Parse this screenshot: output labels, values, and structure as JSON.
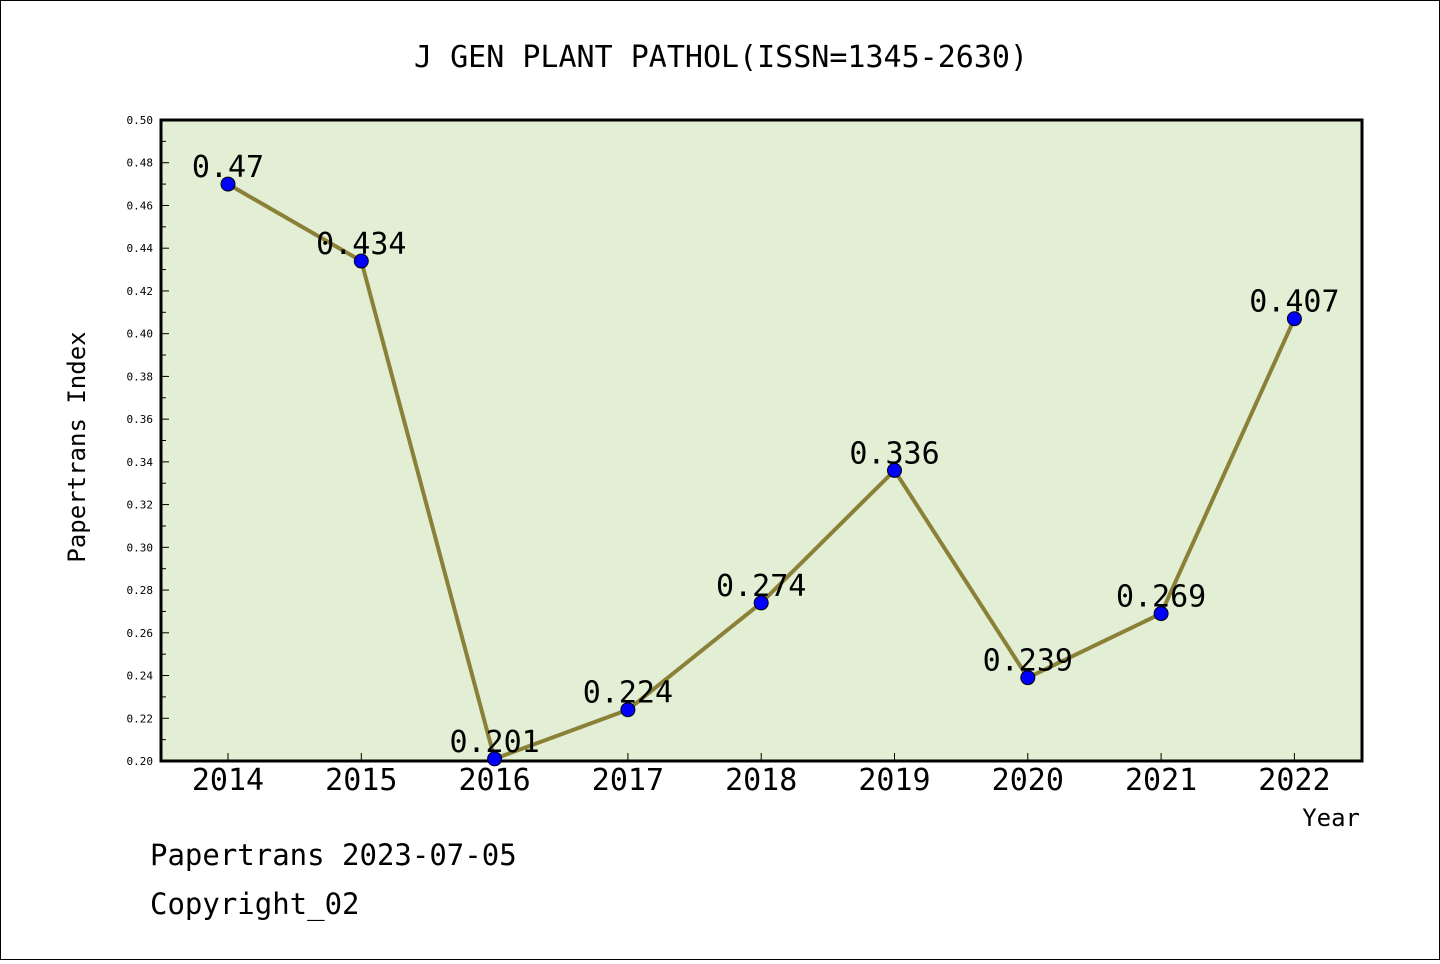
{
  "chart_data": {
    "type": "line",
    "title": "J GEN PLANT PATHOL(ISSN=1345-2630)",
    "xlabel": "Year",
    "ylabel": "Papertrans Index",
    "categories": [
      "2014",
      "2015",
      "2016",
      "2017",
      "2018",
      "2019",
      "2020",
      "2021",
      "2022"
    ],
    "series": [
      {
        "values": [
          0.47,
          0.434,
          0.201,
          0.224,
          0.274,
          0.336,
          0.239,
          0.269,
          0.407
        ]
      }
    ],
    "data_labels": [
      "0.47",
      "0.434",
      "0.201",
      "0.224",
      "0.274",
      "0.336",
      "0.239",
      "0.269",
      "0.407"
    ],
    "ylim": [
      0.2,
      0.5
    ],
    "yticks": [
      "0.20",
      "0.22",
      "0.24",
      "0.26",
      "0.28",
      "0.30",
      "0.32",
      "0.34",
      "0.36",
      "0.38",
      "0.40",
      "0.42",
      "0.44",
      "0.46",
      "0.48",
      "0.50"
    ],
    "grid": false,
    "legend": "none",
    "colors": {
      "plot_background": "#e2efd5",
      "line": "#8b8038",
      "marker": "#0000ff"
    }
  },
  "footer": {
    "line1": "Papertrans 2023-07-05",
    "line2": "Copyright_02"
  }
}
